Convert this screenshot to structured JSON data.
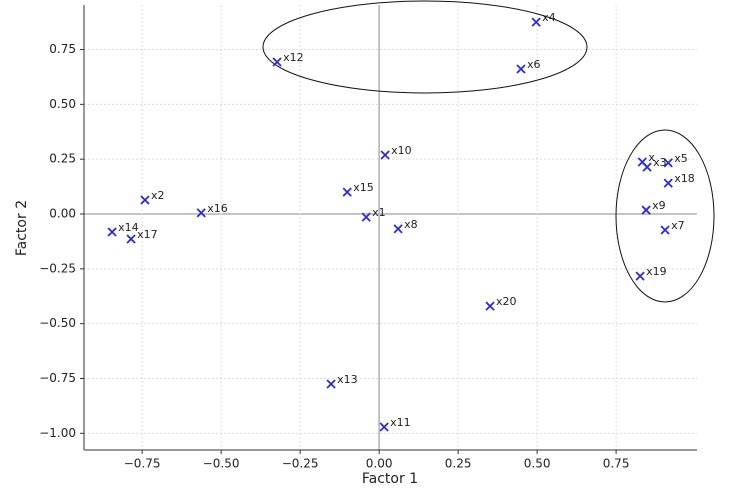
{
  "chart_data": {
    "type": "scatter",
    "x_label": "Factor 1",
    "y_label": "Factor 2",
    "labels": [
      "x4",
      "x12",
      "x6",
      "x10",
      "x5",
      "x",
      "x3",
      "x18",
      "x9",
      "x7",
      "x19",
      "x15",
      "x2",
      "x16",
      "x1",
      "x8",
      "x14",
      "x17",
      "x20",
      "x13",
      "x11"
    ],
    "x": [
      0.497,
      -0.323,
      0.449,
      0.019,
      0.915,
      0.833,
      0.848,
      0.915,
      0.845,
      0.905,
      0.826,
      -0.101,
      -0.741,
      -0.563,
      -0.041,
      0.06,
      -0.845,
      -0.785,
      0.351,
      -0.152,
      0.016
    ],
    "y": [
      0.875,
      0.693,
      0.661,
      0.269,
      0.233,
      0.237,
      0.214,
      0.141,
      0.018,
      -0.073,
      -0.283,
      0.1,
      0.064,
      0.005,
      -0.014,
      -0.068,
      -0.082,
      -0.114,
      -0.42,
      -0.775,
      -0.971
    ],
    "color": "#2b2bd6",
    "xlim": [
      -0.934,
      1.006
    ],
    "ylim": [
      -1.076,
      0.953
    ],
    "xticks": [
      {
        "value": -0.75,
        "label": "−0.75"
      },
      {
        "value": -0.5,
        "label": "−0.50"
      },
      {
        "value": -0.25,
        "label": "−0.25"
      },
      {
        "value": 0,
        "label": "0.00"
      },
      0.25,
      {
        "value": 0.5,
        "label": "0.50"
      },
      0.75
    ],
    "yticks": [
      {
        "value": -1,
        "label": "−1.00"
      },
      {
        "value": -0.75,
        "label": "−0.75"
      },
      {
        "value": -0.5,
        "label": "−0.50"
      },
      {
        "value": -0.25,
        "label": "−0.25"
      },
      {
        "value": 0,
        "label": "0.00"
      },
      0.25,
      {
        "value": 0.5,
        "label": "0.50"
      },
      0.75
    ],
    "grid": true
  }
}
